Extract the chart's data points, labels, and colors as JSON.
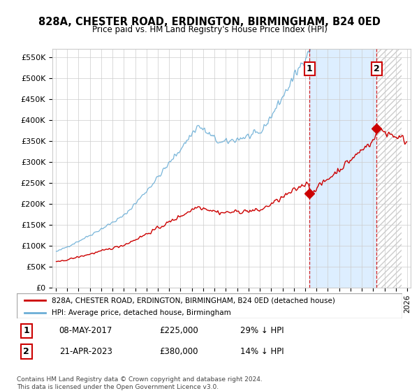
{
  "title": "828A, CHESTER ROAD, ERDINGTON, BIRMINGHAM, B24 0ED",
  "subtitle": "Price paid vs. HM Land Registry's House Price Index (HPI)",
  "hpi_color": "#6baed6",
  "price_color": "#cc0000",
  "sale1_yr": 2017.37,
  "sale1_price_val": 225000,
  "sale2_yr": 2023.29,
  "sale2_price_val": 380000,
  "sale1_date": "08-MAY-2017",
  "sale1_price": "£225,000",
  "sale1_info": "29% ↓ HPI",
  "sale2_date": "21-APR-2023",
  "sale2_price": "£380,000",
  "sale2_info": "14% ↓ HPI",
  "legend_label1": "828A, CHESTER ROAD, ERDINGTON, BIRMINGHAM, B24 0ED (detached house)",
  "legend_label2": "HPI: Average price, detached house, Birmingham",
  "footer": "Contains HM Land Registry data © Crown copyright and database right 2024.\nThis data is licensed under the Open Government Licence v3.0.",
  "ylabel_ticks": [
    "£0",
    "£50K",
    "£100K",
    "£150K",
    "£200K",
    "£250K",
    "£300K",
    "£350K",
    "£400K",
    "£450K",
    "£500K",
    "£550K"
  ],
  "ytick_vals": [
    0,
    50000,
    100000,
    150000,
    200000,
    250000,
    300000,
    350000,
    400000,
    450000,
    500000,
    550000
  ],
  "background_color": "#ffffff",
  "grid_color": "#cccccc",
  "shade_color": "#ddeeff",
  "hatch_color": "#cccccc"
}
